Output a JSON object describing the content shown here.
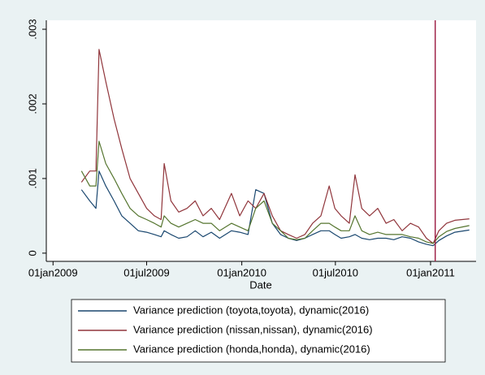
{
  "chart_data": {
    "type": "line",
    "x_label": "Date",
    "x": [
      17953,
      17969,
      17981,
      17987,
      18000,
      18016,
      18031,
      18047,
      18063,
      18079,
      18094,
      18107,
      18113,
      18126,
      18141,
      18157,
      18173,
      18188,
      18204,
      18220,
      18243,
      18259,
      18275,
      18290,
      18306,
      18322,
      18338,
      18353,
      18369,
      18385,
      18400,
      18416,
      18432,
      18443,
      18455,
      18471,
      18482,
      18495,
      18510,
      18526,
      18542,
      18557,
      18573,
      18589,
      18605,
      18620,
      18633,
      18644,
      18659,
      18675,
      18703
    ],
    "series": [
      {
        "name": "Variance prediction (toyota,toyota), dynamic(2016)",
        "color": "#1a476f",
        "values": [
          0.00085,
          0.0007,
          0.0006,
          0.0011,
          0.0009,
          0.0007,
          0.0005,
          0.0004,
          0.0003,
          0.00028,
          0.00025,
          0.00022,
          0.0003,
          0.00025,
          0.0002,
          0.00022,
          0.0003,
          0.00022,
          0.00028,
          0.0002,
          0.0003,
          0.00028,
          0.00025,
          0.00085,
          0.0008,
          0.0004,
          0.00025,
          0.0002,
          0.00017,
          0.0002,
          0.00025,
          0.0003,
          0.0003,
          0.00025,
          0.0002,
          0.00022,
          0.00025,
          0.0002,
          0.00018,
          0.0002,
          0.0002,
          0.00018,
          0.00022,
          0.0002,
          0.00015,
          0.00012,
          0.0001,
          0.00017,
          0.00023,
          0.00028,
          0.00031
        ]
      },
      {
        "name": "Variance prediction (nissan,nissan), dynamic(2016)",
        "color": "#90353b",
        "values": [
          0.00095,
          0.0011,
          0.0011,
          0.00273,
          0.0023,
          0.0018,
          0.0014,
          0.001,
          0.0008,
          0.0006,
          0.0005,
          0.00045,
          0.0012,
          0.0007,
          0.00055,
          0.0006,
          0.0007,
          0.0005,
          0.0006,
          0.00045,
          0.0008,
          0.0005,
          0.0007,
          0.0006,
          0.0008,
          0.0005,
          0.0003,
          0.00025,
          0.0002,
          0.00025,
          0.0004,
          0.0005,
          0.0009,
          0.0006,
          0.0005,
          0.0004,
          0.00105,
          0.0006,
          0.0005,
          0.0006,
          0.0004,
          0.00045,
          0.0003,
          0.0004,
          0.00035,
          0.0002,
          0.00013,
          0.0003,
          0.0004,
          0.00044,
          0.00046
        ]
      },
      {
        "name": "Variance prediction (honda,honda), dynamic(2016)",
        "color": "#55752f",
        "values": [
          0.0011,
          0.0009,
          0.0009,
          0.0015,
          0.0012,
          0.001,
          0.0008,
          0.0006,
          0.0005,
          0.00045,
          0.0004,
          0.00035,
          0.0005,
          0.0004,
          0.00035,
          0.0004,
          0.00045,
          0.0004,
          0.0004,
          0.0003,
          0.0004,
          0.00035,
          0.0003,
          0.0006,
          0.0007,
          0.0004,
          0.0003,
          0.0002,
          0.00018,
          0.0002,
          0.0003,
          0.0004,
          0.0004,
          0.00035,
          0.0003,
          0.0003,
          0.0005,
          0.0003,
          0.00025,
          0.00028,
          0.00025,
          0.00025,
          0.00025,
          0.00022,
          0.0002,
          0.00015,
          0.00013,
          0.00022,
          0.00029,
          0.00033,
          0.00037
        ]
      }
    ],
    "xlim": [
      17885,
      18716
    ],
    "xticks": [
      {
        "value": 17898,
        "label": "01jan2009"
      },
      {
        "value": 18079,
        "label": "01jul2009"
      },
      {
        "value": 18263,
        "label": "01jan2010"
      },
      {
        "value": 18444,
        "label": "01jul2010"
      },
      {
        "value": 18628,
        "label": "01jan2011"
      }
    ],
    "ylim": [
      -0.00011,
      0.00312
    ],
    "yticks": [
      0,
      {
        "value": 0.001,
        "label": ".001"
      },
      {
        "value": 0.002,
        "label": ".002"
      },
      {
        "value": 0.003,
        "label": ".003"
      }
    ],
    "xline": 18637,
    "xline_color": "#a0254a",
    "grid": false
  }
}
